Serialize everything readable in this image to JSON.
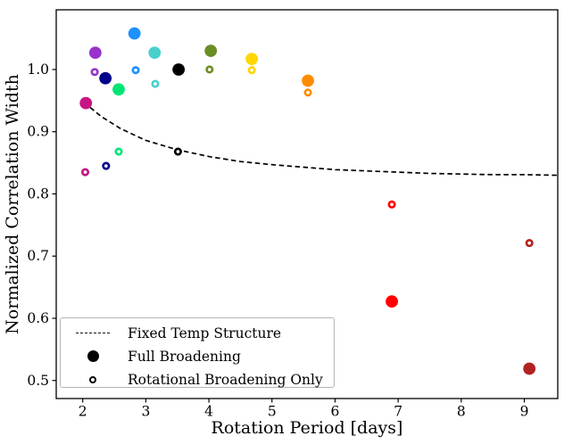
{
  "figure": {
    "background": "#ffffff"
  },
  "chart_data": {
    "type": "scatter",
    "title": "",
    "xlabel": "Rotation Period [days]",
    "ylabel": "Normalized Correlation Width",
    "xlim": [
      1.58,
      9.53
    ],
    "ylim": [
      0.471,
      1.096
    ],
    "x_ticks": [
      2,
      3,
      4,
      5,
      6,
      7,
      8,
      9
    ],
    "x_tick_labels": [
      "2",
      "3",
      "4",
      "5",
      "6",
      "7",
      "8",
      "9"
    ],
    "y_ticks": [
      0.5,
      0.6,
      0.7,
      0.8,
      0.9,
      1.0
    ],
    "y_tick_labels": [
      "0.5",
      "0.6",
      "0.7",
      "0.8",
      "0.9",
      "1.0"
    ],
    "grid": false,
    "legend_position": "lower-left",
    "series": [
      {
        "color_name": "mediumvioletred",
        "color": "#C71585",
        "full": [
          2.05,
          0.946
        ],
        "rotational": [
          2.04,
          0.835
        ]
      },
      {
        "color_name": "darkorchid",
        "color": "#9932CC",
        "full": [
          2.2,
          1.027
        ],
        "rotational": [
          2.19,
          0.996
        ]
      },
      {
        "color_name": "navy",
        "color": "#00008B",
        "full": [
          2.36,
          0.986
        ],
        "rotational": [
          2.37,
          0.845
        ]
      },
      {
        "color_name": "springgreen",
        "color": "#00E673",
        "full": [
          2.57,
          0.968
        ],
        "rotational": [
          2.57,
          0.868
        ]
      },
      {
        "color_name": "dodgerblue",
        "color": "#1E90FF",
        "full": [
          2.82,
          1.058
        ],
        "rotational": [
          2.84,
          0.999
        ]
      },
      {
        "color_name": "mediumturquoise",
        "color": "#48D1CC",
        "full": [
          3.14,
          1.027
        ],
        "rotational": [
          3.15,
          0.977
        ]
      },
      {
        "color_name": "black",
        "color": "#000000",
        "full": [
          3.52,
          1.0
        ],
        "rotational": [
          3.51,
          0.868
        ]
      },
      {
        "color_name": "olivedrab",
        "color": "#6B8E23",
        "full": [
          4.03,
          1.03
        ],
        "rotational": [
          4.01,
          1.0
        ]
      },
      {
        "color_name": "gold",
        "color": "#FFD700",
        "full": [
          4.68,
          1.017
        ],
        "rotational": [
          4.68,
          0.999
        ]
      },
      {
        "color_name": "darkorange",
        "color": "#FF8C00",
        "full": [
          5.57,
          0.982
        ],
        "rotational": [
          5.57,
          0.963
        ]
      },
      {
        "color_name": "red",
        "color": "#FF0000",
        "full": [
          6.9,
          0.627
        ],
        "rotational": [
          6.9,
          0.783
        ]
      },
      {
        "color_name": "firebrick",
        "color": "#B22222",
        "full": [
          9.08,
          0.519
        ],
        "rotational": [
          9.08,
          0.721
        ]
      }
    ],
    "dashed_curve": {
      "name": "Fixed Temp Structure",
      "color": "#000000",
      "points": [
        [
          2.02,
          0.947
        ],
        [
          2.3,
          0.924
        ],
        [
          2.6,
          0.905
        ],
        [
          3.0,
          0.886
        ],
        [
          3.5,
          0.871
        ],
        [
          4.0,
          0.86
        ],
        [
          4.5,
          0.852
        ],
        [
          5.0,
          0.847
        ],
        [
          5.5,
          0.843
        ],
        [
          6.0,
          0.839
        ],
        [
          6.5,
          0.837
        ],
        [
          7.0,
          0.835
        ],
        [
          7.5,
          0.833
        ],
        [
          8.0,
          0.832
        ],
        [
          8.5,
          0.831
        ],
        [
          9.0,
          0.831
        ],
        [
          9.53,
          0.83
        ]
      ]
    }
  },
  "legend": {
    "items": [
      {
        "label": "Fixed Temp Structure",
        "marker": "dashed-line"
      },
      {
        "label": "Full Broadening",
        "marker": "filled-circle"
      },
      {
        "label": "Rotational Broadening Only",
        "marker": "open-circle"
      }
    ]
  }
}
